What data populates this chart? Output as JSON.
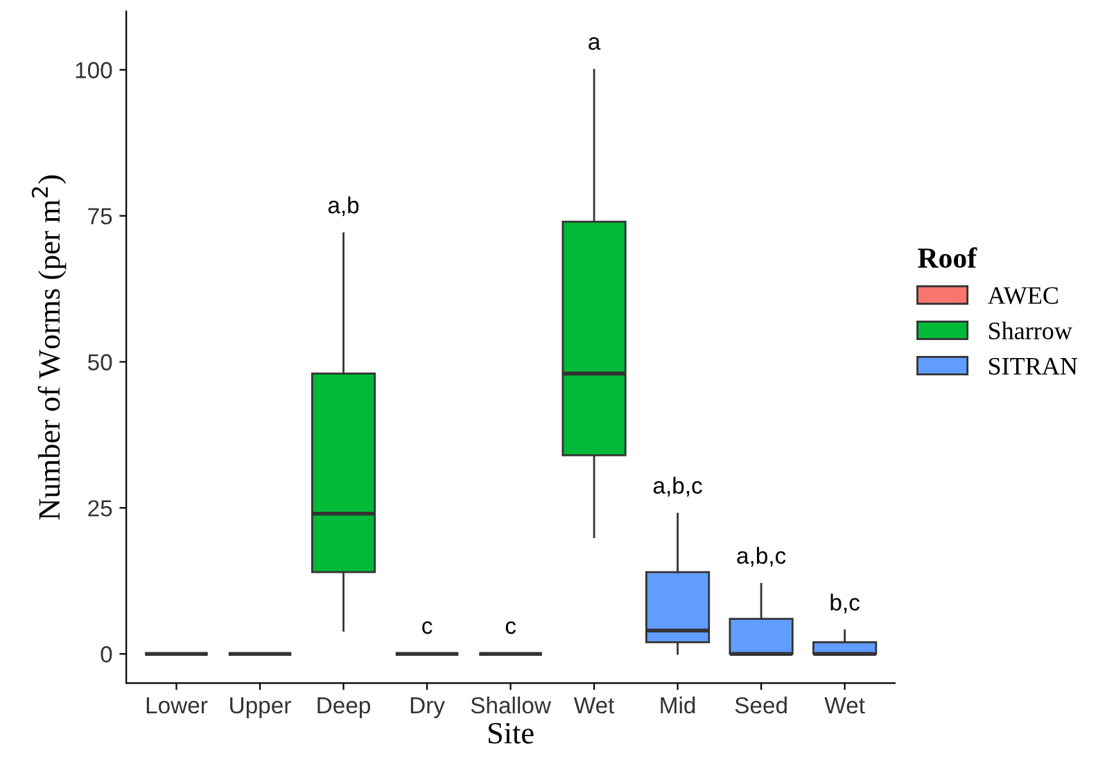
{
  "chart_data": {
    "type": "box",
    "xlabel": "Site",
    "ylabel": "Number of Worms (per m$^{2}$)",
    "legend_title": "Roof",
    "categories": [
      "Lower",
      "Upper",
      "Deep",
      "Dry",
      "Shallow",
      "Wet",
      "Mid",
      "Seed",
      "Wet"
    ],
    "series": [
      {
        "name": "AWEC",
        "color": "#f8766d",
        "boxes": [
          {
            "low": 0,
            "q1": 0,
            "median": 0,
            "q3": 0,
            "high": 0
          },
          {
            "low": 0,
            "q1": 0,
            "median": 0,
            "q3": 0,
            "high": 0
          },
          null,
          null,
          null,
          null,
          null,
          null,
          null
        ]
      },
      {
        "name": "Sharrow",
        "color": "#00ba38",
        "boxes": [
          null,
          null,
          {
            "low": 4,
            "q1": 14,
            "median": 24,
            "q3": 48,
            "high": 72
          },
          {
            "low": 0,
            "q1": 0,
            "median": 0,
            "q3": 0,
            "high": 0
          },
          {
            "low": 0,
            "q1": 0,
            "median": 0,
            "q3": 0,
            "high": 0
          },
          {
            "low": 20,
            "q1": 34,
            "median": 48,
            "q3": 74,
            "high": 100
          },
          null,
          null,
          null
        ]
      },
      {
        "name": "SITRAN",
        "color": "#619cff",
        "boxes": [
          null,
          null,
          null,
          null,
          null,
          null,
          {
            "low": 0,
            "q1": 2,
            "median": 4,
            "q3": 14,
            "high": 24
          },
          {
            "low": 0,
            "q1": 0,
            "median": 0,
            "q3": 6,
            "high": 12
          },
          {
            "low": 0,
            "q1": 0,
            "median": 0,
            "q3": 2,
            "high": 4
          }
        ]
      }
    ],
    "ylim": [
      -5,
      110
    ],
    "yticks": [
      0,
      25,
      50,
      75,
      100
    ],
    "grid": false,
    "legend": "right",
    "annotations": [
      {
        "text": "a,b",
        "x": "Deep",
        "y": 72
      },
      {
        "text": "c",
        "x": "Dry",
        "y": 0
      },
      {
        "text": "c",
        "x": "Shallow",
        "y": 0
      },
      {
        "text": "a",
        "x": "Wet",
        "y": 100
      },
      {
        "text": "a,b,c",
        "x": "Mid",
        "y": 24
      },
      {
        "text": "a,b,c",
        "x": "Seed",
        "y": 12
      },
      "b,c"
    ]
  }
}
